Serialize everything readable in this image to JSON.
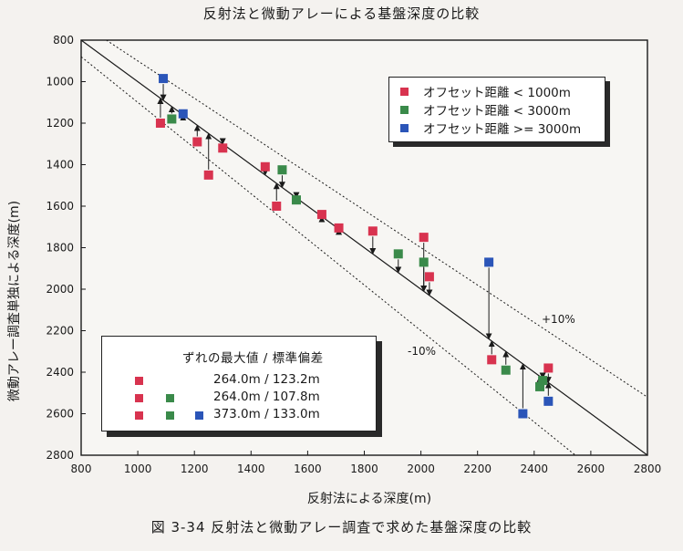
{
  "title": "反射法と微動アレーによる基盤深度の比較",
  "caption": "図 3-34  反射法と微動アレー調査で求めた基盤深度の比較",
  "colors": {
    "red": "#d8334f",
    "green": "#3a8a4a",
    "blue": "#2b55b8"
  },
  "legend_offset": {
    "items": [
      {
        "label": "オフセット距離 < 1000m",
        "color": "#d8334f"
      },
      {
        "label": "オフセット距離 < 3000m",
        "color": "#3a8a4a"
      },
      {
        "label": "オフセット距離 >= 3000m",
        "color": "#2b55b8"
      }
    ]
  },
  "legend_stats": {
    "header": "ずれの最大値 / 標準偏差",
    "rows": [
      {
        "value": "264.0m / 123.2m",
        "colors": [
          "#d8334f"
        ]
      },
      {
        "value": "264.0m / 107.8m",
        "colors": [
          "#d8334f",
          "#3a8a4a"
        ]
      },
      {
        "value": "373.0m / 133.0m",
        "colors": [
          "#d8334f",
          "#3a8a4a",
          "#2b55b8"
        ]
      }
    ]
  },
  "chart_data": {
    "type": "scatter",
    "xlabel": "反射法による深度(m)",
    "ylabel": "微動アレー調査単独による深度(m)",
    "xlim": [
      800,
      2800
    ],
    "ylim": [
      800,
      2800
    ],
    "y_inverted": true,
    "xticks": [
      800,
      1000,
      1200,
      1400,
      1600,
      1800,
      2000,
      2200,
      2400,
      2600,
      2800
    ],
    "yticks": [
      800,
      1000,
      1200,
      1400,
      1600,
      1800,
      2000,
      2200,
      2400,
      2600,
      2800
    ],
    "reference_lines": [
      {
        "label": "",
        "factor": 1.0,
        "style": "solid"
      },
      {
        "label": "+10%",
        "factor": 0.9,
        "style": "dotted"
      },
      {
        "label": "-10%",
        "factor": 1.1,
        "style": "dotted"
      }
    ],
    "points": [
      {
        "x": 1080,
        "y": 1200,
        "color": "red",
        "arrow_to": 1080
      },
      {
        "x": 1090,
        "y": 985,
        "color": "blue",
        "arrow_to": 1090
      },
      {
        "x": 1120,
        "y": 1180,
        "color": "green",
        "arrow_to": 1120
      },
      {
        "x": 1160,
        "y": 1155,
        "color": "blue",
        "arrow_to": 1160
      },
      {
        "x": 1210,
        "y": 1290,
        "color": "red",
        "arrow_to": 1210
      },
      {
        "x": 1250,
        "y": 1450,
        "color": "red",
        "arrow_to": 1250
      },
      {
        "x": 1300,
        "y": 1320,
        "color": "red",
        "arrow_to": 1300
      },
      {
        "x": 1450,
        "y": 1410,
        "color": "red",
        "arrow_to": 1450
      },
      {
        "x": 1490,
        "y": 1600,
        "color": "red",
        "arrow_to": 1490
      },
      {
        "x": 1510,
        "y": 1425,
        "color": "green",
        "arrow_to": 1510
      },
      {
        "x": 1560,
        "y": 1570,
        "color": "green",
        "arrow_to": 1560
      },
      {
        "x": 1650,
        "y": 1640,
        "color": "red",
        "arrow_to": 1650
      },
      {
        "x": 1710,
        "y": 1705,
        "color": "red",
        "arrow_to": 1710
      },
      {
        "x": 1830,
        "y": 1720,
        "color": "red",
        "arrow_to": 1830
      },
      {
        "x": 1920,
        "y": 1830,
        "color": "green",
        "arrow_to": 1920
      },
      {
        "x": 2010,
        "y": 1750,
        "color": "red",
        "arrow_to": 2010
      },
      {
        "x": 2010,
        "y": 1870,
        "color": "green",
        "arrow_to": 2010
      },
      {
        "x": 2030,
        "y": 1940,
        "color": "red",
        "arrow_to": 2030
      },
      {
        "x": 2240,
        "y": 1870,
        "color": "blue",
        "arrow_to": 2240
      },
      {
        "x": 2250,
        "y": 2340,
        "color": "red",
        "arrow_to": 2250
      },
      {
        "x": 2300,
        "y": 2390,
        "color": "green",
        "arrow_to": 2300
      },
      {
        "x": 2360,
        "y": 2600,
        "color": "blue",
        "arrow_to": 2360
      },
      {
        "x": 2420,
        "y": 2470,
        "color": "green",
        "arrow_to": 2420
      },
      {
        "x": 2430,
        "y": 2440,
        "color": "green",
        "arrow_to": 2430
      },
      {
        "x": 2450,
        "y": 2380,
        "color": "red",
        "arrow_to": 2450
      },
      {
        "x": 2450,
        "y": 2540,
        "color": "blue",
        "arrow_to": 2450
      }
    ],
    "annotations": [
      "+10%",
      "-10%"
    ],
    "grid": false
  }
}
